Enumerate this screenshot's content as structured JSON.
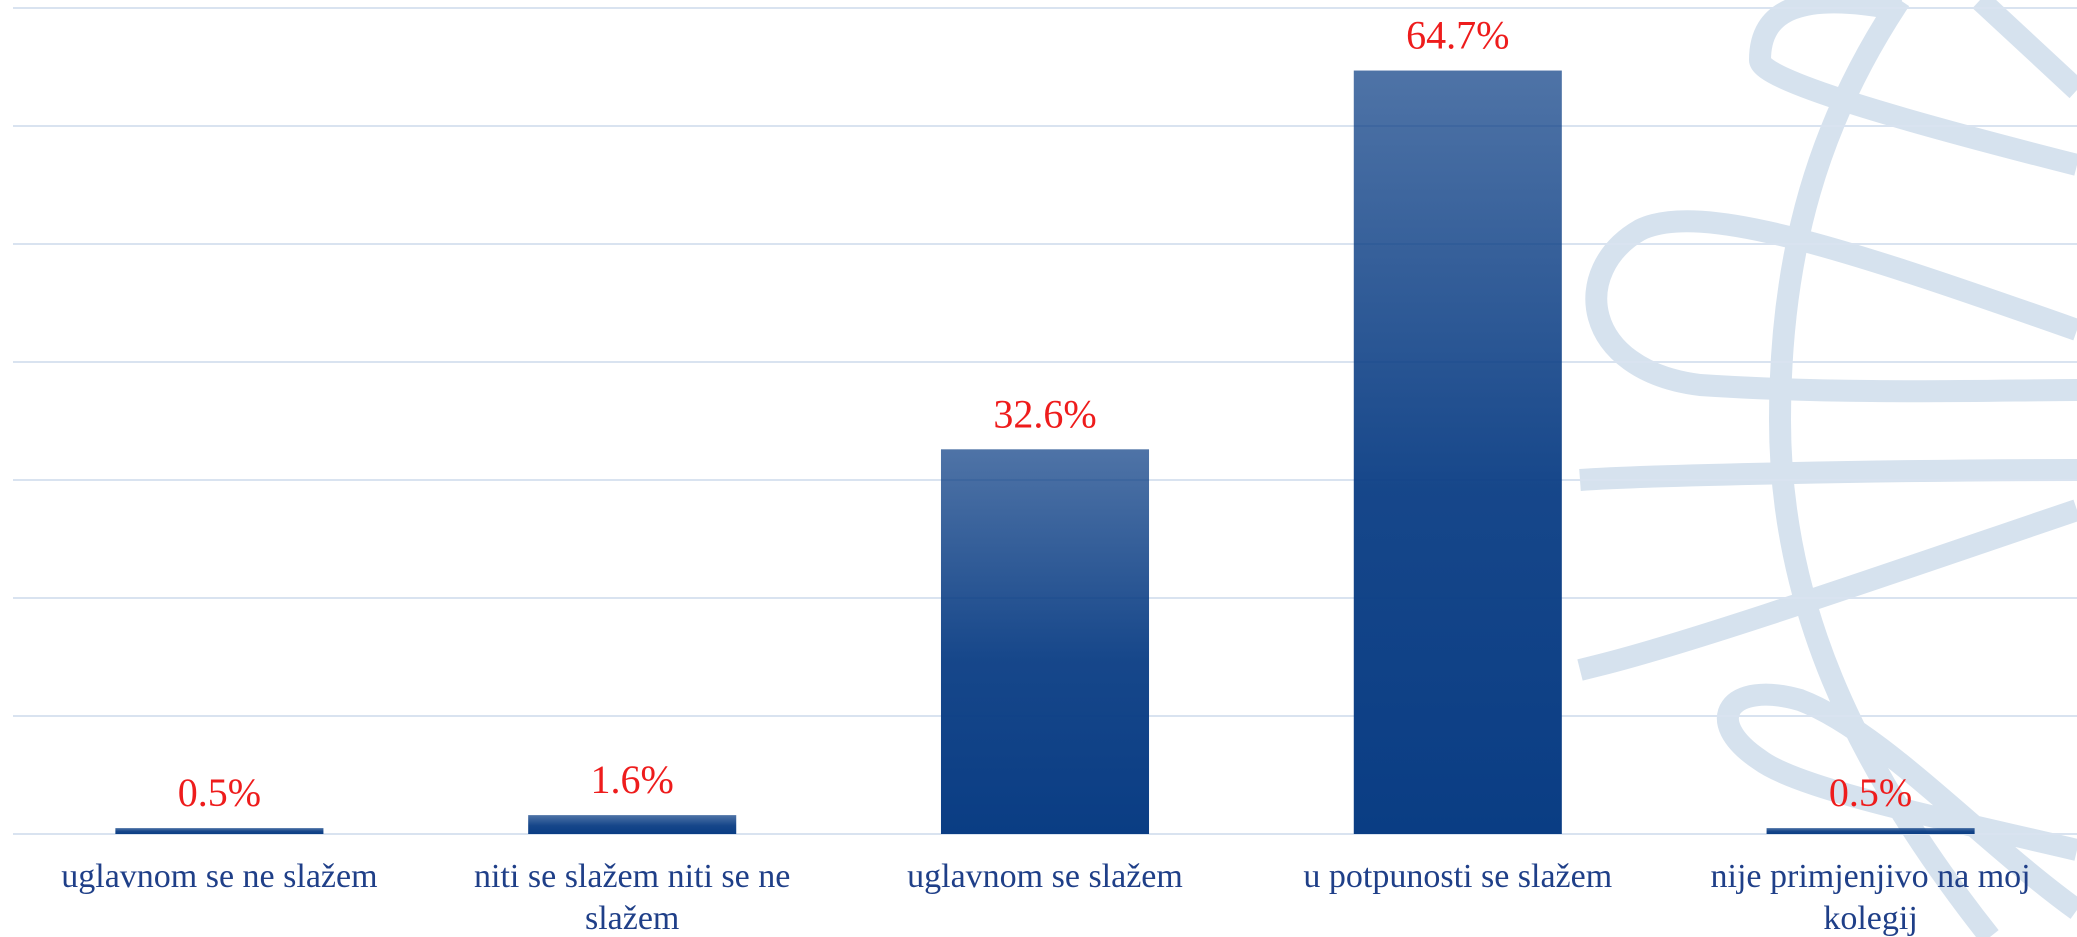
{
  "chart_data": {
    "type": "bar",
    "categories": [
      "uglavnom se ne slažem",
      "niti se slažem niti se ne slažem",
      "uglavnom se slažem",
      "u potpunosti se slažem",
      "nije primjenjivo na moj kolegij"
    ],
    "values": [
      0.5,
      1.6,
      32.6,
      64.7,
      0.5
    ],
    "value_labels": [
      "0.5%",
      "1.6%",
      "32.6%",
      "64.7%",
      "0.5%"
    ],
    "color": "#0a3d84",
    "ylim": [
      0,
      70
    ],
    "yticks": [
      0,
      10,
      20,
      30,
      40,
      50,
      60,
      70
    ],
    "grid": true
  }
}
